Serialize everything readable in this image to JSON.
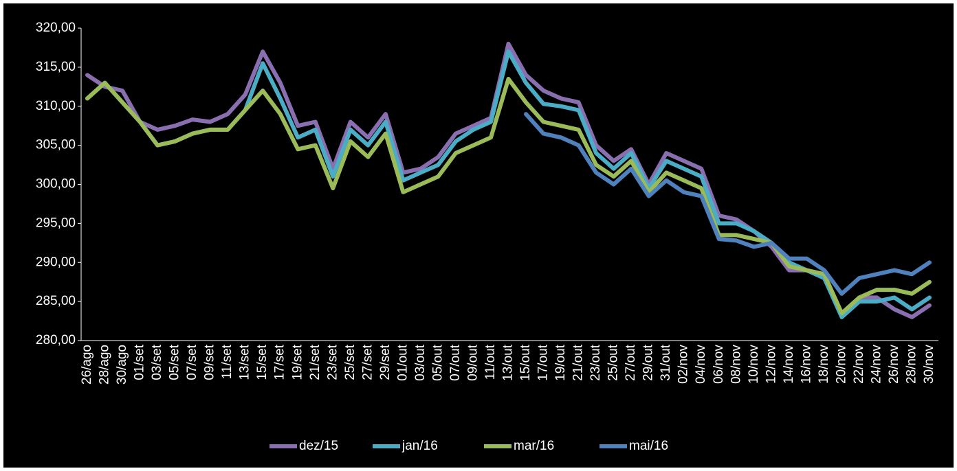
{
  "chart_data": {
    "type": "line",
    "categories": [
      "26/ago",
      "28/ago",
      "30/ago",
      "01/set",
      "03/set",
      "05/set",
      "07/set",
      "09/set",
      "11/set",
      "13/set",
      "15/set",
      "17/set",
      "19/set",
      "21/set",
      "23/set",
      "25/set",
      "27/set",
      "29/set",
      "01/out",
      "03/out",
      "05/out",
      "07/out",
      "09/out",
      "11/out",
      "13/out",
      "15/out",
      "17/out",
      "19/out",
      "21/out",
      "23/out",
      "25/out",
      "27/out",
      "29/out",
      "31/out",
      "02/nov",
      "04/nov",
      "06/nov",
      "08/nov",
      "10/nov",
      "12/nov",
      "14/nov",
      "16/nov",
      "18/nov",
      "20/nov",
      "22/nov",
      "24/nov",
      "26/nov",
      "28/nov",
      "30/nov"
    ],
    "series": [
      {
        "name": "dez/15",
        "color": "#8a6fb0",
        "values": [
          314,
          312.5,
          312,
          308,
          307,
          307.5,
          308.3,
          308,
          309,
          311.5,
          317,
          313,
          307.5,
          308,
          302,
          308,
          306,
          309,
          301.5,
          302,
          303.5,
          306.5,
          307.5,
          308.5,
          318,
          314,
          312,
          311,
          310.5,
          305,
          303,
          304.5,
          300,
          304,
          303,
          302,
          296,
          295.5,
          294,
          292,
          289,
          289,
          288,
          283.5,
          285.5,
          285.5,
          284,
          283,
          284.5
        ]
      },
      {
        "name": "jan/16",
        "color": "#4bacc6",
        "values": [
          311,
          313,
          310.5,
          308,
          305,
          305.5,
          306.5,
          307,
          307,
          309.5,
          315.5,
          311,
          306,
          307,
          301,
          307,
          305,
          308,
          300.5,
          301.5,
          302.5,
          305.5,
          307,
          308,
          317,
          313,
          310.3,
          310,
          309.5,
          304,
          302,
          304,
          299.5,
          303,
          302,
          301,
          295,
          295,
          294,
          292.5,
          290,
          289,
          288,
          283,
          285,
          285,
          285.5,
          284,
          285.5
        ]
      },
      {
        "name": "mar/16",
        "color": "#9bbb59",
        "values": [
          311,
          313,
          310.5,
          308,
          305,
          305.5,
          306.5,
          307,
          307,
          309.5,
          312,
          309,
          304.5,
          305,
          299.5,
          305.5,
          303.5,
          306.5,
          299,
          300,
          301,
          304,
          305,
          306,
          313.5,
          310.5,
          308,
          307.5,
          307,
          302.5,
          301,
          303,
          299,
          301.5,
          300.5,
          299.5,
          293.5,
          293.5,
          293,
          292.5,
          289.5,
          289,
          288.5,
          283.5,
          285.5,
          286.5,
          286.5,
          286,
          287.5
        ]
      },
      {
        "name": "mai/16",
        "color": "#4f81bd",
        "values": [
          null,
          null,
          null,
          null,
          null,
          null,
          null,
          null,
          null,
          null,
          null,
          null,
          null,
          null,
          null,
          null,
          null,
          null,
          null,
          null,
          null,
          null,
          null,
          null,
          null,
          309,
          306.5,
          306,
          305,
          301.5,
          300,
          302,
          298.5,
          300.5,
          299,
          298.5,
          293,
          292.8,
          292,
          292.5,
          290.5,
          290.5,
          289,
          286,
          288,
          288.5,
          289,
          288.5,
          290
        ]
      }
    ],
    "ylim": [
      280,
      320
    ],
    "yticks": [
      {
        "value": 280,
        "label": "280,00"
      },
      {
        "value": 285,
        "label": "285,00"
      },
      {
        "value": 290,
        "label": "290,00"
      },
      {
        "value": 295,
        "label": "295,00"
      },
      {
        "value": 300,
        "label": "300,00"
      },
      {
        "value": 305,
        "label": "305,00"
      },
      {
        "value": 310,
        "label": "310,00"
      },
      {
        "value": 315,
        "label": "315,00"
      },
      {
        "value": 320,
        "label": "320,00"
      }
    ],
    "legend": "bottom"
  }
}
